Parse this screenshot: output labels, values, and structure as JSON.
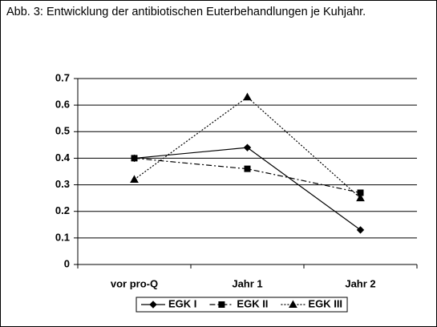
{
  "chart_data": {
    "type": "line",
    "title": "Abb. 3: Entwicklung der antibiotischen Euterbehandlungen je Kuhjahr.",
    "categories": [
      "vor pro-Q",
      "Jahr 1",
      "Jahr 2"
    ],
    "series": [
      {
        "name": "EGK I",
        "color": "#000000",
        "dash": "solid",
        "marker": "diamond",
        "values": [
          0.4,
          0.44,
          0.13
        ]
      },
      {
        "name": "EGK II",
        "color": "#000000",
        "dash": "dashdot",
        "marker": "square",
        "values": [
          0.4,
          0.36,
          0.27
        ]
      },
      {
        "name": "EGK III",
        "color": "#000000",
        "dash": "dotted",
        "marker": "triangle",
        "values": [
          0.32,
          0.63,
          0.25
        ]
      }
    ],
    "ylim": [
      0,
      0.7
    ],
    "yticks": [
      0,
      0.1,
      0.2,
      0.3,
      0.4,
      0.5,
      0.6,
      0.7
    ],
    "grid": true,
    "legend": "bottom"
  }
}
